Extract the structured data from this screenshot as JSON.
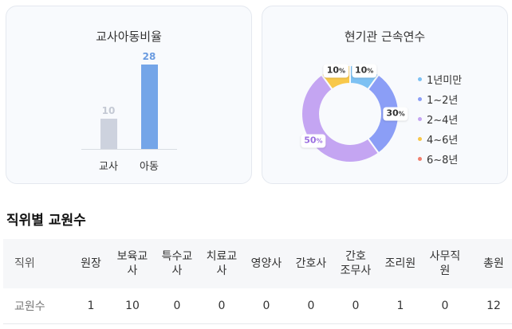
{
  "ratio_card": {
    "title": "교사아동비율",
    "chart_data": {
      "type": "bar",
      "categories": [
        "교사",
        "아동"
      ],
      "values": [
        10,
        28
      ],
      "colors": [
        "#cdd2de",
        "#74a5e8"
      ],
      "value_label_colors": [
        "#c4c9d4",
        "#6a9be0"
      ]
    }
  },
  "tenure_card": {
    "title": "현기관 근속연수",
    "chart_data": {
      "type": "pie",
      "labels": [
        "1년미만",
        "1~2년",
        "2~4년",
        "4~6년",
        "6~8년"
      ],
      "values": [
        10,
        30,
        50,
        10,
        0
      ],
      "colors": [
        "#7dc1f3",
        "#8b9ef6",
        "#c4a5f2",
        "#f8c84a",
        "#f07f6e"
      ]
    }
  },
  "section": {
    "title": "직위별 교원수"
  },
  "table": {
    "headers": [
      [
        "직위"
      ],
      [
        "원장"
      ],
      [
        "보육교",
        "사"
      ],
      [
        "특수교",
        "사"
      ],
      [
        "치료교",
        "사"
      ],
      [
        "영양사"
      ],
      [
        "간호사"
      ],
      [
        "간호",
        "조무사"
      ],
      [
        "조리원"
      ],
      [
        "사무직",
        "원"
      ],
      [
        "총원"
      ]
    ],
    "row": [
      "교원수",
      "1",
      "10",
      "0",
      "0",
      "0",
      "0",
      "0",
      "1",
      "0",
      "12"
    ]
  }
}
